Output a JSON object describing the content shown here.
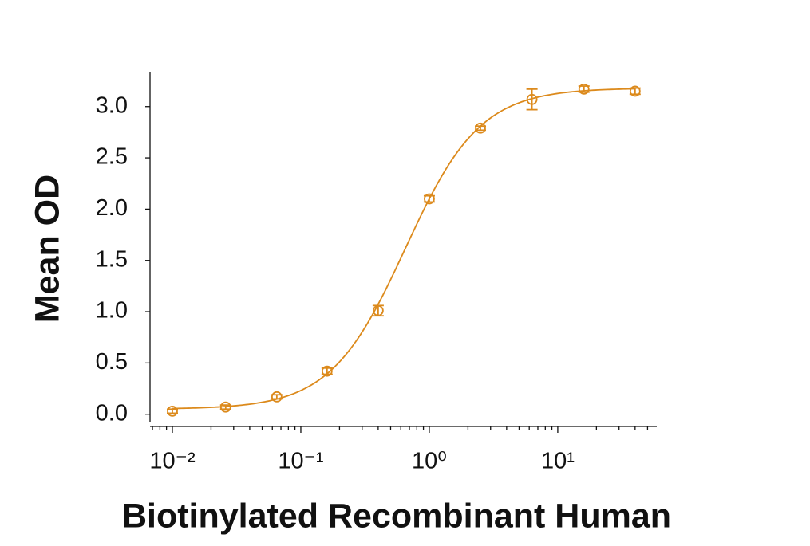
{
  "chart_data": {
    "type": "scatter",
    "y_label": "Mean OD",
    "x_label": "Biotinylated Recombinant Human",
    "color": "#dc8a1c",
    "x_log": true,
    "x": [
      0.01,
      0.026,
      0.065,
      0.16,
      0.4,
      1,
      2.5,
      6.3,
      16,
      40
    ],
    "values": [
      0.03,
      0.07,
      0.17,
      0.42,
      1.01,
      2.1,
      2.79,
      3.07,
      3.17,
      3.15
    ],
    "errors": [
      0.02,
      0.02,
      0.02,
      0.03,
      0.05,
      0.03,
      0.02,
      0.1,
      0.03,
      0.03
    ],
    "fit": {
      "bottom": 0.05,
      "top": 3.18,
      "ec50": 0.65,
      "hill": 1.49
    },
    "xlim": [
      0.0067,
      59
    ],
    "ylim": [
      -0.08,
      3.34
    ],
    "xticks": [
      {
        "value": 0.01,
        "label": "10⁻²"
      },
      {
        "value": 0.1,
        "label": "10⁻¹"
      },
      {
        "value": 1,
        "label": "10⁰"
      },
      {
        "value": 10,
        "label": "10¹"
      }
    ],
    "xminorticks": [
      0.007,
      0.008,
      0.009,
      0.02,
      0.03,
      0.04,
      0.05,
      0.06,
      0.07,
      0.08,
      0.09,
      0.2,
      0.3,
      0.4,
      0.5,
      0.6,
      0.7,
      0.8,
      0.9,
      2,
      3,
      4,
      5,
      6,
      7,
      8,
      9,
      20,
      30,
      40,
      50
    ],
    "yticks": [
      {
        "value": 0,
        "label": "0.0"
      },
      0.5,
      {
        "value": 1,
        "label": "1.0"
      },
      1.5,
      {
        "value": 2,
        "label": "2.0"
      },
      2.5,
      {
        "value": 3,
        "label": "3.0"
      }
    ]
  }
}
